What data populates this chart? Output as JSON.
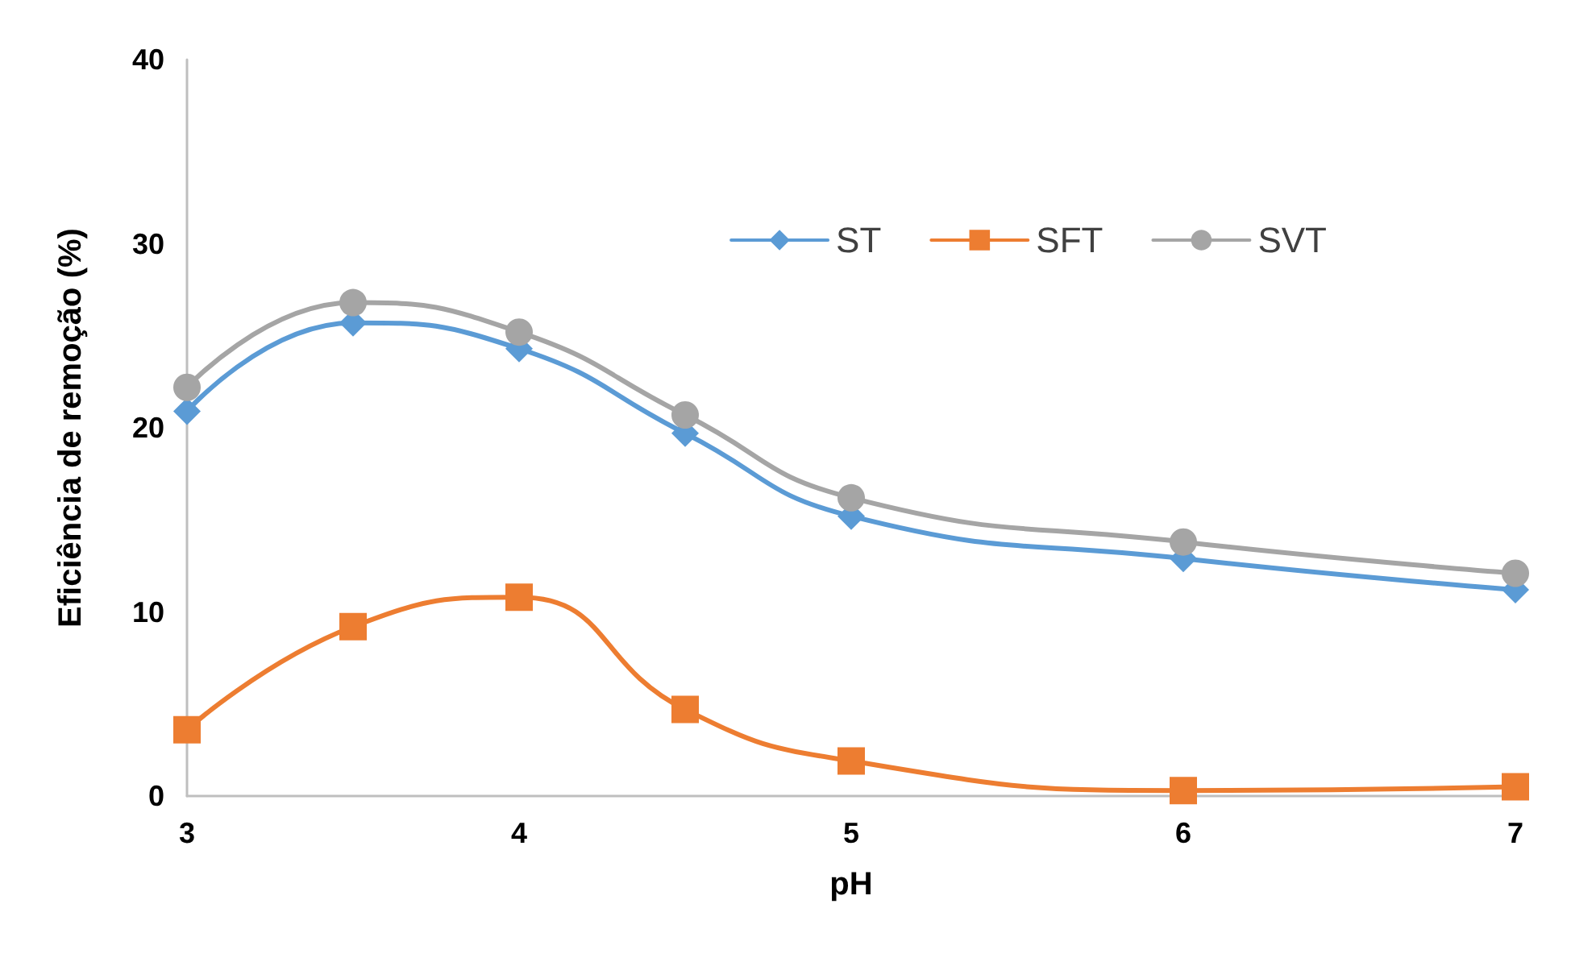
{
  "chart_data": {
    "type": "line",
    "xlabel": "pH",
    "ylabel": "Eficiência de remoção (%)",
    "x": [
      3,
      3.5,
      4,
      4.5,
      5,
      6,
      7
    ],
    "xlim": [
      3,
      7
    ],
    "xticks": [
      3,
      4,
      5,
      6,
      7
    ],
    "ylim": [
      0,
      40
    ],
    "yticks": [
      0,
      10,
      20,
      30,
      40
    ],
    "grid": false,
    "legend": "top right",
    "series": [
      {
        "name": "ST",
        "color": "#5b9bd5",
        "marker": "diamond",
        "values": [
          20.9,
          25.7,
          24.3,
          19.7,
          15.2,
          12.9,
          11.2
        ]
      },
      {
        "name": "SFT",
        "color": "#ed7d31",
        "marker": "square",
        "values": [
          3.6,
          9.2,
          10.8,
          4.7,
          1.9,
          0.3,
          0.5
        ]
      },
      {
        "name": "SVT",
        "color": "#a5a5a5",
        "marker": "circle",
        "values": [
          22.2,
          26.8,
          25.2,
          20.7,
          16.2,
          13.8,
          12.1
        ]
      }
    ]
  }
}
